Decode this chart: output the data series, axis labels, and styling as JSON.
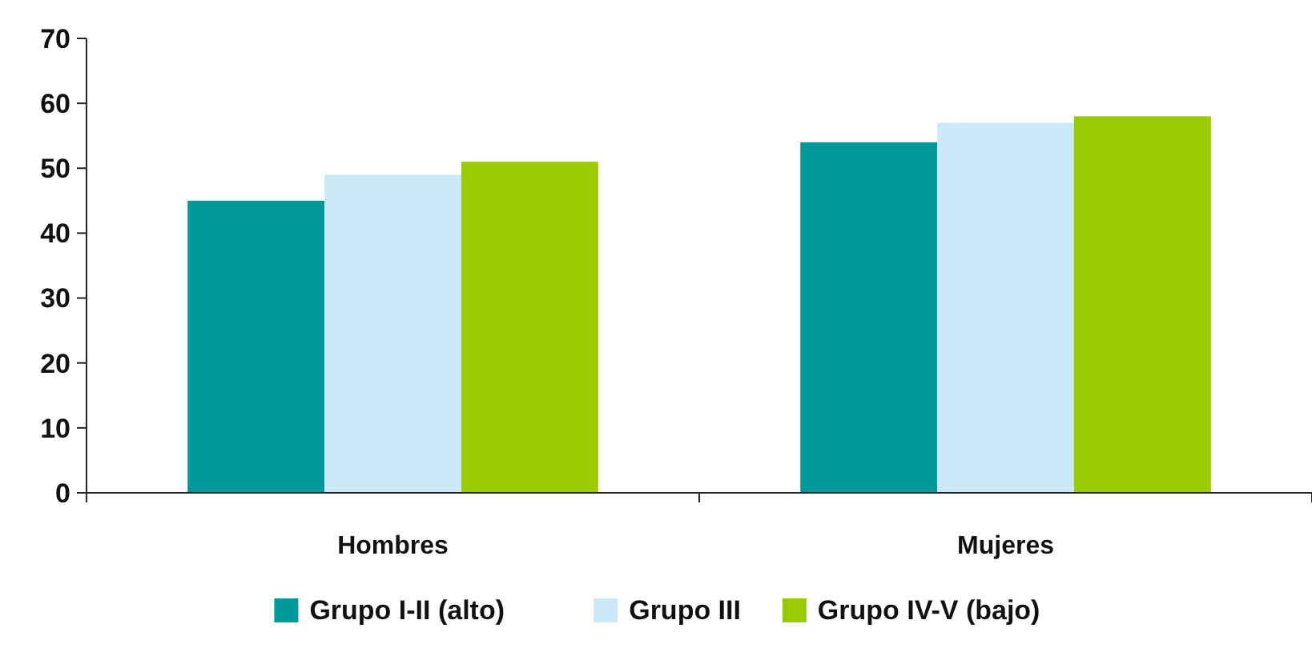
{
  "chart_data": {
    "type": "bar",
    "categories": [
      "Hombres",
      "Mujeres"
    ],
    "series": [
      {
        "name": "Grupo I-II (alto)",
        "color": "#009999",
        "values": [
          45,
          54
        ]
      },
      {
        "name": "Grupo III",
        "color": "#cce9fa",
        "values": [
          49,
          57
        ]
      },
      {
        "name": "Grupo IV-V (bajo)",
        "color": "#99cc00",
        "values": [
          51,
          58
        ]
      }
    ],
    "ylim": [
      0,
      70
    ],
    "yticks": [
      0,
      10,
      20,
      30,
      40,
      50,
      60,
      70
    ],
    "grid": false,
    "legend": "bottom"
  }
}
